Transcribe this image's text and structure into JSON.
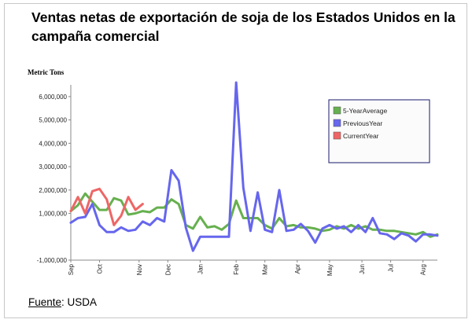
{
  "title": "Ventas netas de exportación de soja de los Estados Unidos en la campaña comercial",
  "source": {
    "label": "Fuente",
    "text": ": USDA"
  },
  "colors": {
    "5-YearAverage": "#66b04f",
    "PreviousYear": "#6666ee",
    "CurrentYear": "#ee6666"
  },
  "chart_data": {
    "type": "line",
    "ylabel": "Metric Tons",
    "ylim": [
      -1000000,
      6500000
    ],
    "yticks": [
      -1000000,
      1000000,
      2000000,
      3000000,
      4000000,
      5000000,
      6000000
    ],
    "ytick_labels": [
      "-1,000,000",
      "1,000,000",
      "2,000,000",
      "3,000,000",
      "4,000,000",
      "5,000,000",
      "6,000,000"
    ],
    "x_count": 52,
    "month_labels": [
      {
        "label": "Sep",
        "week": 0
      },
      {
        "label": "Oct",
        "week": 4
      },
      {
        "label": "Nov",
        "week": 9.5
      },
      {
        "label": "Dec",
        "week": 13.5
      },
      {
        "label": "Jan",
        "week": 18
      },
      {
        "label": "Feb",
        "week": 23
      },
      {
        "label": "Mar",
        "week": 27
      },
      {
        "label": "Apr",
        "week": 31.5
      },
      {
        "label": "May",
        "week": 36
      },
      {
        "label": "Jun",
        "week": 40.5
      },
      {
        "label": "Jul",
        "week": 44.5
      },
      {
        "label": "Aug",
        "week": 49
      }
    ],
    "legend_placement": "top-right",
    "series": [
      {
        "name": "5-YearAverage",
        "values": [
          1100000,
          1350000,
          1850000,
          1500000,
          1150000,
          1150000,
          1650000,
          1550000,
          950000,
          1000000,
          1100000,
          1050000,
          1250000,
          1250000,
          1600000,
          1400000,
          500000,
          350000,
          850000,
          400000,
          450000,
          300000,
          550000,
          1550000,
          800000,
          800000,
          800000,
          500000,
          350000,
          800000,
          450000,
          500000,
          400000,
          400000,
          350000,
          250000,
          300000,
          450000,
          350000,
          500000,
          350000,
          450000,
          300000,
          300000,
          250000,
          250000,
          200000,
          150000,
          100000,
          200000,
          0,
          100000
        ]
      },
      {
        "name": "PreviousYear",
        "values": [
          600000,
          800000,
          850000,
          1400000,
          500000,
          200000,
          200000,
          400000,
          250000,
          300000,
          650000,
          500000,
          800000,
          650000,
          2850000,
          2400000,
          400000,
          -600000,
          0,
          0,
          0,
          0,
          0,
          6600000,
          2100000,
          250000,
          1900000,
          300000,
          200000,
          2000000,
          250000,
          300000,
          550000,
          250000,
          -250000,
          350000,
          500000,
          350000,
          450000,
          200000,
          500000,
          200000,
          800000,
          150000,
          100000,
          -100000,
          150000,
          50000,
          -200000,
          100000,
          100000,
          50000
        ]
      },
      {
        "name": "CurrentYear",
        "values": [
          1100000,
          1700000,
          1000000,
          1950000,
          2050000,
          1600000,
          500000,
          900000,
          1700000,
          1150000,
          1400000
        ]
      }
    ]
  }
}
